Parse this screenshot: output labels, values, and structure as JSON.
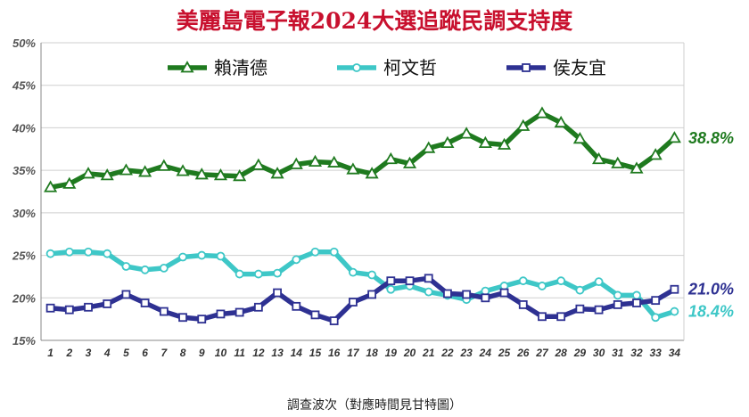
{
  "chart_data": {
    "type": "line",
    "title": "美麗島電子報2024大選追蹤民調支持度",
    "xlabel": "調查波次（對應時間見甘特圖）",
    "ylabel": "",
    "x": [
      "1",
      "2",
      "3",
      "4",
      "5",
      "6",
      "7",
      "8",
      "9",
      "10",
      "11",
      "12",
      "13",
      "14",
      "15",
      "16",
      "17",
      "18",
      "19",
      "20",
      "21",
      "22",
      "23",
      "24",
      "25",
      "26",
      "27",
      "28",
      "29",
      "30",
      "31",
      "32",
      "33",
      "34"
    ],
    "yticks": [
      "15%",
      "20%",
      "25%",
      "30%",
      "35%",
      "40%",
      "45%",
      "50%"
    ],
    "ylim": [
      15,
      50
    ],
    "grid": true,
    "legend_position": "top",
    "series": [
      {
        "name": "賴清德",
        "color": "#1f7a1f",
        "marker": "triangle",
        "values": [
          33.0,
          33.4,
          34.6,
          34.4,
          35.0,
          34.8,
          35.5,
          34.9,
          34.5,
          34.4,
          34.3,
          35.6,
          34.6,
          35.7,
          36.0,
          35.9,
          35.1,
          34.6,
          36.3,
          35.8,
          37.6,
          38.2,
          39.3,
          38.2,
          38.0,
          40.2,
          41.7,
          40.6,
          38.7,
          36.3,
          35.8,
          35.2,
          36.8,
          38.8
        ],
        "end_label": "38.8%"
      },
      {
        "name": "柯文哲",
        "color": "#3ec7c7",
        "marker": "circle",
        "values": [
          25.2,
          25.4,
          25.4,
          25.2,
          23.7,
          23.3,
          23.5,
          24.8,
          25.0,
          24.9,
          22.8,
          22.8,
          22.9,
          24.5,
          25.4,
          25.4,
          23.0,
          22.7,
          21.0,
          21.4,
          20.7,
          20.3,
          19.8,
          20.8,
          21.4,
          22.0,
          21.4,
          22.0,
          20.9,
          21.9,
          20.3,
          20.3,
          17.7,
          18.4
        ],
        "end_label": "18.4%"
      },
      {
        "name": "侯友宜",
        "color": "#2e3192",
        "marker": "square",
        "values": [
          18.8,
          18.6,
          18.9,
          19.3,
          20.4,
          19.4,
          18.4,
          17.7,
          17.5,
          18.1,
          18.3,
          18.9,
          20.6,
          19.0,
          18.0,
          17.3,
          19.5,
          20.4,
          22.0,
          22.0,
          22.3,
          20.5,
          20.4,
          20.0,
          20.6,
          19.2,
          17.8,
          17.8,
          18.7,
          18.6,
          19.2,
          19.4,
          19.7,
          21.0
        ],
        "end_label": "21.0%"
      }
    ]
  }
}
